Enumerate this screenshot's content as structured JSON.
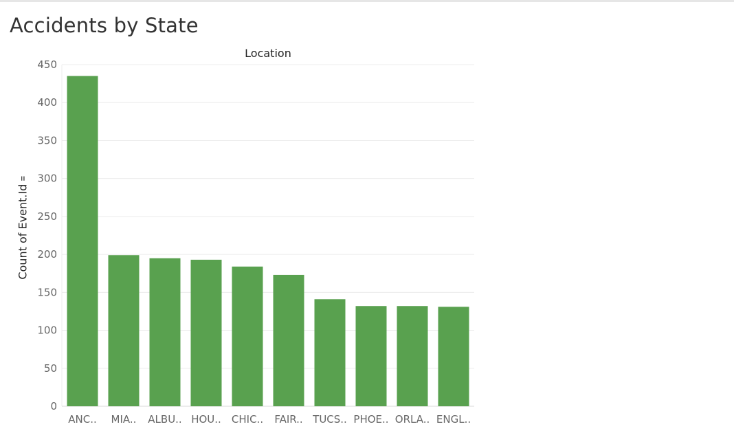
{
  "title": "Accidents by State",
  "chart_data": {
    "type": "bar",
    "column_header": "Location",
    "ylabel": "Count of Event.Id",
    "ylim": [
      0,
      450
    ],
    "yticks": [
      0,
      50,
      100,
      150,
      200,
      250,
      300,
      350,
      400,
      450
    ],
    "categories": [
      "ANC..",
      "MIA..",
      "ALBU..",
      "HOU..",
      "CHIC..",
      "FAIR..",
      "TUCS..",
      "PHOE..",
      "ORLA..",
      "ENGL.."
    ],
    "values": [
      435,
      199,
      195,
      193,
      184,
      173,
      141,
      132,
      132,
      131
    ],
    "grid": true,
    "bar_color": "#59a14f",
    "grid_color": "#ececec"
  }
}
